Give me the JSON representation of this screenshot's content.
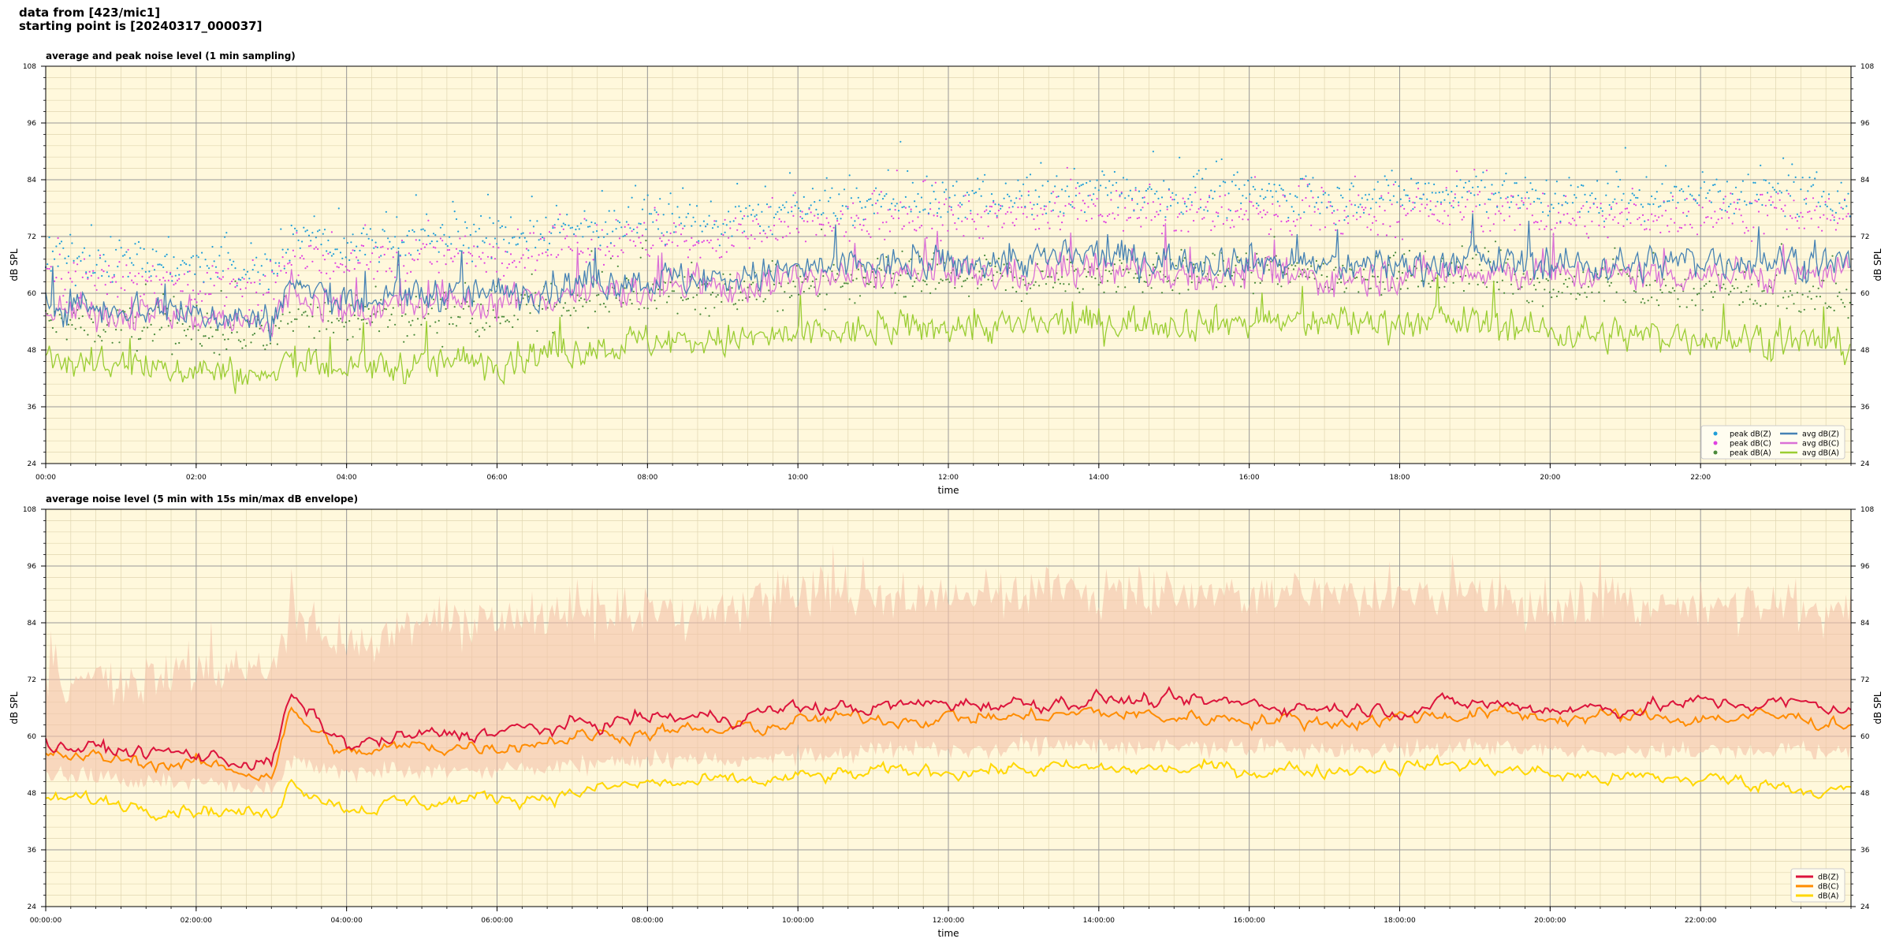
{
  "header": {
    "line1": "data from [423/mic1]",
    "line2": "starting point is [20240317_000037]"
  },
  "colors": {
    "plot_bg": "#fff8dc",
    "grid_major": "#999999",
    "grid_minor": "#e0d6b0",
    "peak_z": "#1f9ed8",
    "peak_c": "#e040e0",
    "peak_a": "#4a8a3a",
    "avg_z": "#4682b4",
    "avg_c": "#da70d6",
    "avg_a": "#9acd32",
    "db_z": "#dc143c",
    "db_c": "#ff8c00",
    "db_a": "#ffd700",
    "envelope": "#f4c2a8"
  },
  "chart_data": [
    {
      "type": "line",
      "title": "average and peak noise level (1 min sampling)",
      "xlabel": "time",
      "ylabel": "dB SPL",
      "xlim_minutes": [
        0,
        1440
      ],
      "ylim": [
        24,
        108
      ],
      "yticks": [
        24,
        36,
        48,
        60,
        72,
        84,
        96,
        108
      ],
      "xticks": [
        "00:00",
        "02:00",
        "04:00",
        "06:00",
        "08:00",
        "10:00",
        "12:00",
        "14:00",
        "16:00",
        "18:00",
        "20:00",
        "22:00"
      ],
      "grid": true,
      "legend_position": "bottom-right",
      "legend": [
        {
          "label": "peak dB(Z)",
          "kind": "dot",
          "color_key": "peak_z"
        },
        {
          "label": "peak dB(C)",
          "kind": "dot",
          "color_key": "peak_c"
        },
        {
          "label": "peak dB(A)",
          "kind": "dot",
          "color_key": "peak_a"
        },
        {
          "label": "avg dB(Z)",
          "kind": "line",
          "color_key": "avg_z"
        },
        {
          "label": "avg dB(C)",
          "kind": "line",
          "color_key": "avg_c"
        },
        {
          "label": "avg dB(A)",
          "kind": "line",
          "color_key": "avg_a"
        }
      ],
      "series_profile": {
        "time_minutes": [
          0,
          60,
          120,
          180,
          195,
          240,
          300,
          360,
          420,
          480,
          540,
          600,
          660,
          720,
          780,
          840,
          900,
          960,
          1020,
          1080,
          1140,
          1200,
          1260,
          1320,
          1380,
          1440
        ],
        "avg_z": [
          58,
          57,
          56,
          54,
          62,
          58,
          60,
          60,
          62,
          63,
          63,
          65,
          66,
          66,
          67,
          68,
          67,
          67,
          66,
          66,
          67,
          66,
          66,
          67,
          67,
          66
        ],
        "avg_c": [
          56,
          56,
          55,
          53,
          60,
          56,
          58,
          58,
          60,
          61,
          61,
          63,
          64,
          64,
          64,
          65,
          64,
          64,
          63,
          64,
          65,
          64,
          64,
          64,
          64,
          64
        ],
        "avg_a": [
          46,
          45,
          44,
          42,
          46,
          44,
          45,
          46,
          48,
          50,
          50,
          51,
          52,
          53,
          53,
          54,
          54,
          54,
          54,
          54,
          54,
          52,
          51,
          51,
          50,
          49
        ],
        "peak_z": [
          68,
          67,
          66,
          64,
          72,
          70,
          72,
          72,
          74,
          75,
          75,
          78,
          79,
          80,
          80,
          82,
          81,
          81,
          80,
          81,
          82,
          80,
          80,
          81,
          81,
          80
        ],
        "peak_c": [
          64,
          63,
          62,
          60,
          68,
          66,
          68,
          68,
          70,
          71,
          71,
          74,
          75,
          76,
          76,
          78,
          77,
          77,
          76,
          77,
          78,
          76,
          76,
          77,
          77,
          76
        ],
        "peak_a": [
          54,
          53,
          52,
          50,
          56,
          54,
          55,
          56,
          58,
          60,
          60,
          61,
          62,
          63,
          63,
          64,
          64,
          64,
          64,
          64,
          64,
          62,
          61,
          61,
          60,
          59
        ]
      }
    },
    {
      "type": "area",
      "title": "average noise level (5 min with 15s min/max dB envelope)",
      "xlabel": "time",
      "ylabel": "dB SPL",
      "xlim_minutes": [
        0,
        1440
      ],
      "ylim": [
        24,
        108
      ],
      "yticks": [
        24,
        36,
        48,
        60,
        72,
        84,
        96,
        108
      ],
      "xticks": [
        "00:00:00",
        "02:00:00",
        "04:00:00",
        "06:00:00",
        "08:00:00",
        "10:00:00",
        "12:00:00",
        "14:00:00",
        "16:00:00",
        "18:00:00",
        "20:00:00",
        "22:00:00"
      ],
      "grid": true,
      "legend_position": "bottom-right",
      "legend": [
        {
          "label": "dB(Z)",
          "kind": "line",
          "color_key": "db_z"
        },
        {
          "label": "dB(C)",
          "kind": "line",
          "color_key": "db_c"
        },
        {
          "label": "dB(A)",
          "kind": "line",
          "color_key": "db_a"
        }
      ],
      "series_profile": {
        "time_minutes": [
          0,
          60,
          120,
          180,
          195,
          240,
          300,
          360,
          420,
          480,
          540,
          600,
          660,
          720,
          780,
          840,
          900,
          960,
          1020,
          1080,
          1140,
          1200,
          1260,
          1320,
          1380,
          1440
        ],
        "db_z": [
          58,
          57,
          56,
          54,
          68,
          58,
          60,
          61,
          62,
          64,
          64,
          66,
          66,
          67,
          67,
          68,
          67,
          67,
          66,
          66,
          67,
          66,
          66,
          67,
          67,
          66
        ],
        "db_c": [
          56,
          55,
          54,
          52,
          65,
          56,
          58,
          58,
          60,
          61,
          61,
          63,
          64,
          64,
          64,
          65,
          64,
          64,
          63,
          64,
          65,
          64,
          64,
          64,
          64,
          63
        ],
        "db_a": [
          47,
          46,
          45,
          43,
          51,
          45,
          46,
          47,
          48,
          50,
          50,
          51,
          52,
          53,
          53,
          53,
          53,
          53,
          53,
          54,
          54,
          52,
          51,
          51,
          50,
          48
        ],
        "envelope_min": [
          52,
          51,
          50,
          49,
          55,
          52,
          53,
          53,
          54,
          55,
          55,
          56,
          57,
          57,
          58,
          58,
          58,
          58,
          57,
          57,
          58,
          57,
          57,
          57,
          57,
          57
        ],
        "envelope_max": [
          72,
          72,
          74,
          74,
          86,
          80,
          84,
          84,
          86,
          86,
          86,
          90,
          90,
          90,
          90,
          92,
          90,
          90,
          90,
          90,
          90,
          88,
          88,
          88,
          88,
          86
        ]
      }
    }
  ]
}
